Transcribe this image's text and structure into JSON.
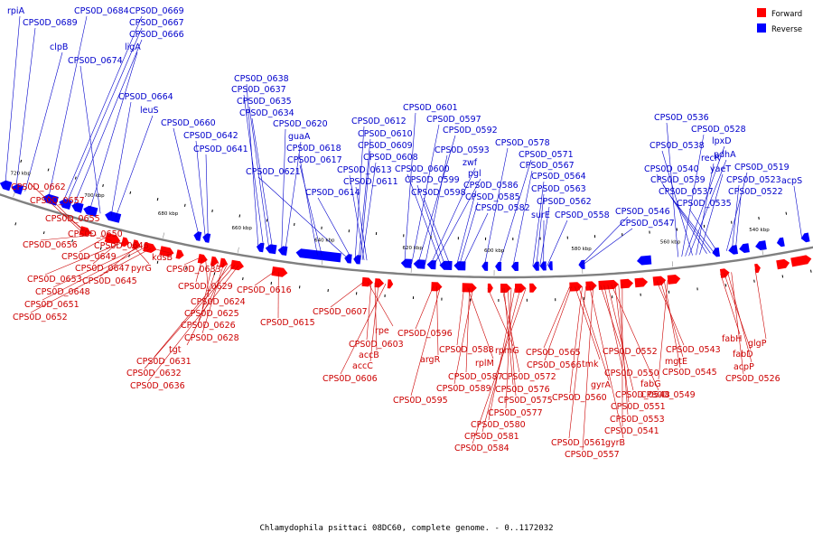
{
  "caption": "Chlamydophila psittaci 08DC60, complete genome. - 0..1172032",
  "legend": [
    {
      "label": "Forward",
      "color": "#ff0000"
    },
    {
      "label": "Reverse",
      "color": "#0000ff"
    }
  ],
  "colors": {
    "forward": "#ff0000",
    "reverse": "#0000ff",
    "label_forward": "#cc0000",
    "label_reverse": "#0000cc"
  },
  "ticks": [
    "720 kbp",
    "700 kbp",
    "680 kbp",
    "660 kbp",
    "640 kbp",
    "620 kbp",
    "600 kbp",
    "580 kbp",
    "560 kbp",
    "540 kbp"
  ],
  "reverse_labels": [
    "rpiA",
    "CPS0D_0689",
    "CPS0D_0684",
    "CPS0D_0669",
    "CPS0D_0667",
    "CPS0D_0666",
    "clpB",
    "ligA",
    "CPS0D_0674",
    "CPS0D_0664",
    "leuS",
    "CPS0D_0660",
    "CPS0D_0642",
    "CPS0D_0641",
    "CPS0D_0638",
    "CPS0D_0637",
    "CPS0D_0635",
    "CPS0D_0634",
    "CPS0D_0620",
    "guaA",
    "CPS0D_0618",
    "CPS0D_0617",
    "CPS0D_0621",
    "CPS0D_0614",
    "CPS0D_0612",
    "CPS0D_0610",
    "CPS0D_0609",
    "CPS0D_0608",
    "CPS0D_0613",
    "CPS0D_0611",
    "CPS0D_0601",
    "CPS0D_0597",
    "CPS0D_0592",
    "CPS0D_0593",
    "zwf",
    "pgl",
    "CPS0D_0600",
    "CPS0D_0599",
    "CPS0D_0598",
    "CPS0D_0586",
    "CPS0D_0585",
    "CPS0D_0582",
    "CPS0D_0578",
    "CPS0D_0571",
    "CPS0D_0567",
    "CPS0D_0564",
    "CPS0D_0563",
    "CPS0D_0562",
    "surE",
    "CPS0D_0558",
    "CPS0D_0546",
    "CPS0D_0547",
    "CPS0D_0536",
    "CPS0D_0528",
    "lpxD",
    "pdhA",
    "CPS0D_0538",
    "recR",
    "yaeT",
    "CPS0D_0540",
    "CPS0D_0539",
    "CPS0D_0537",
    "CPS0D_0535",
    "CPS0D_0519",
    "CPS0D_0523",
    "CPS0D_0522",
    "acpS"
  ],
  "forward_labels": [
    "CPS0D_0662",
    "CPS0D_0657",
    "CPS0D_0655",
    "CPS0D_0650",
    "CPS0D_0656",
    "CPS0D_0646",
    "CPS0D_0649",
    "kdsB",
    "CPS0D_0647",
    "pyrG",
    "CPS0D_0653",
    "CPS0D_0645",
    "CPS0D_0648",
    "CPS0D_0651",
    "CPS0D_0652",
    "CPS0D_0633",
    "CPS0D_0629",
    "CPS0D_0624",
    "CPS0D_0625",
    "CPS0D_0626",
    "CPS0D_0628",
    "tgt",
    "CPS0D_0631",
    "CPS0D_0632",
    "CPS0D_0636",
    "CPS0D_0616",
    "CPS0D_0615",
    "CPS0D_0607",
    "rpe",
    "CPS0D_0603",
    "accB",
    "accC",
    "CPS0D_0606",
    "CPS0D_0596",
    "argR",
    "CPS0D_0595",
    "CPS0D_0588",
    "rplM",
    "CPS0D_0587",
    "CPS0D_0589",
    "rpmG",
    "CPS0D_0572",
    "CPS0D_0576",
    "CPS0D_0575",
    "CPS0D_0577",
    "CPS0D_0580",
    "CPS0D_0581",
    "CPS0D_0584",
    "CPS0D_0565",
    "CPS0D_0566",
    "tmk",
    "gyrA",
    "CPS0D_0560",
    "CPS0D_0561",
    "gyrB",
    "CPS0D_0557",
    "CPS0D_0552",
    "CPS0D_0550",
    "CPS0D_0548",
    "CPS0D_0549",
    "CPS0D_0551",
    "CPS0D_0553",
    "CPS0D_0541",
    "CPS0D_0543",
    "mgtE",
    "CPS0D_0545",
    "fabG",
    "fabH",
    "fabD",
    "acpP",
    "CPS0D_0526",
    "glgP"
  ]
}
